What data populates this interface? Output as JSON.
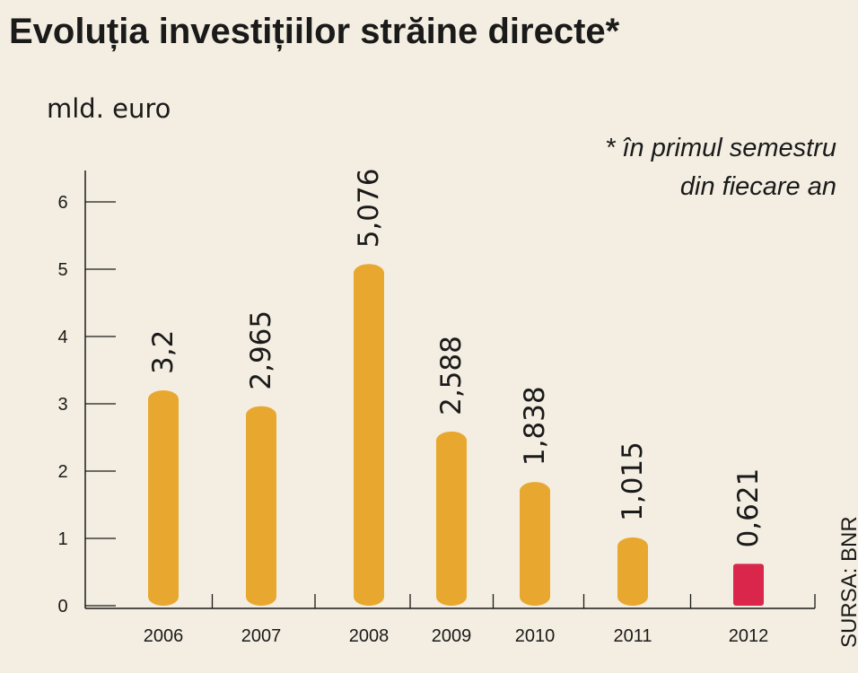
{
  "chart_data": {
    "type": "bar",
    "title": "Evoluția investițiilor străine directe*",
    "unit_label": "mld. euro",
    "note_lines": [
      "* în primul semestru",
      "din fiecare an"
    ],
    "source": "SURSA: BNR",
    "categories": [
      "2006",
      "2007",
      "2008",
      "2009",
      "2010",
      "2011",
      "2012"
    ],
    "values": [
      3.2,
      2.965,
      5.076,
      2.588,
      1.838,
      1.015,
      0.621
    ],
    "value_labels": [
      "3,2",
      "2,965",
      "5,076",
      "2,588",
      "1,838",
      "1,015",
      "0,621"
    ],
    "y_ticks": [
      "0",
      "1",
      "2",
      "3",
      "4",
      "5",
      "6"
    ],
    "ylim": [
      0,
      6
    ],
    "colors": {
      "bar": "#e8a830",
      "highlight": "#d9264a",
      "text": "#1a1a1a",
      "background": "#f3eee1"
    },
    "highlight_index": 6
  }
}
